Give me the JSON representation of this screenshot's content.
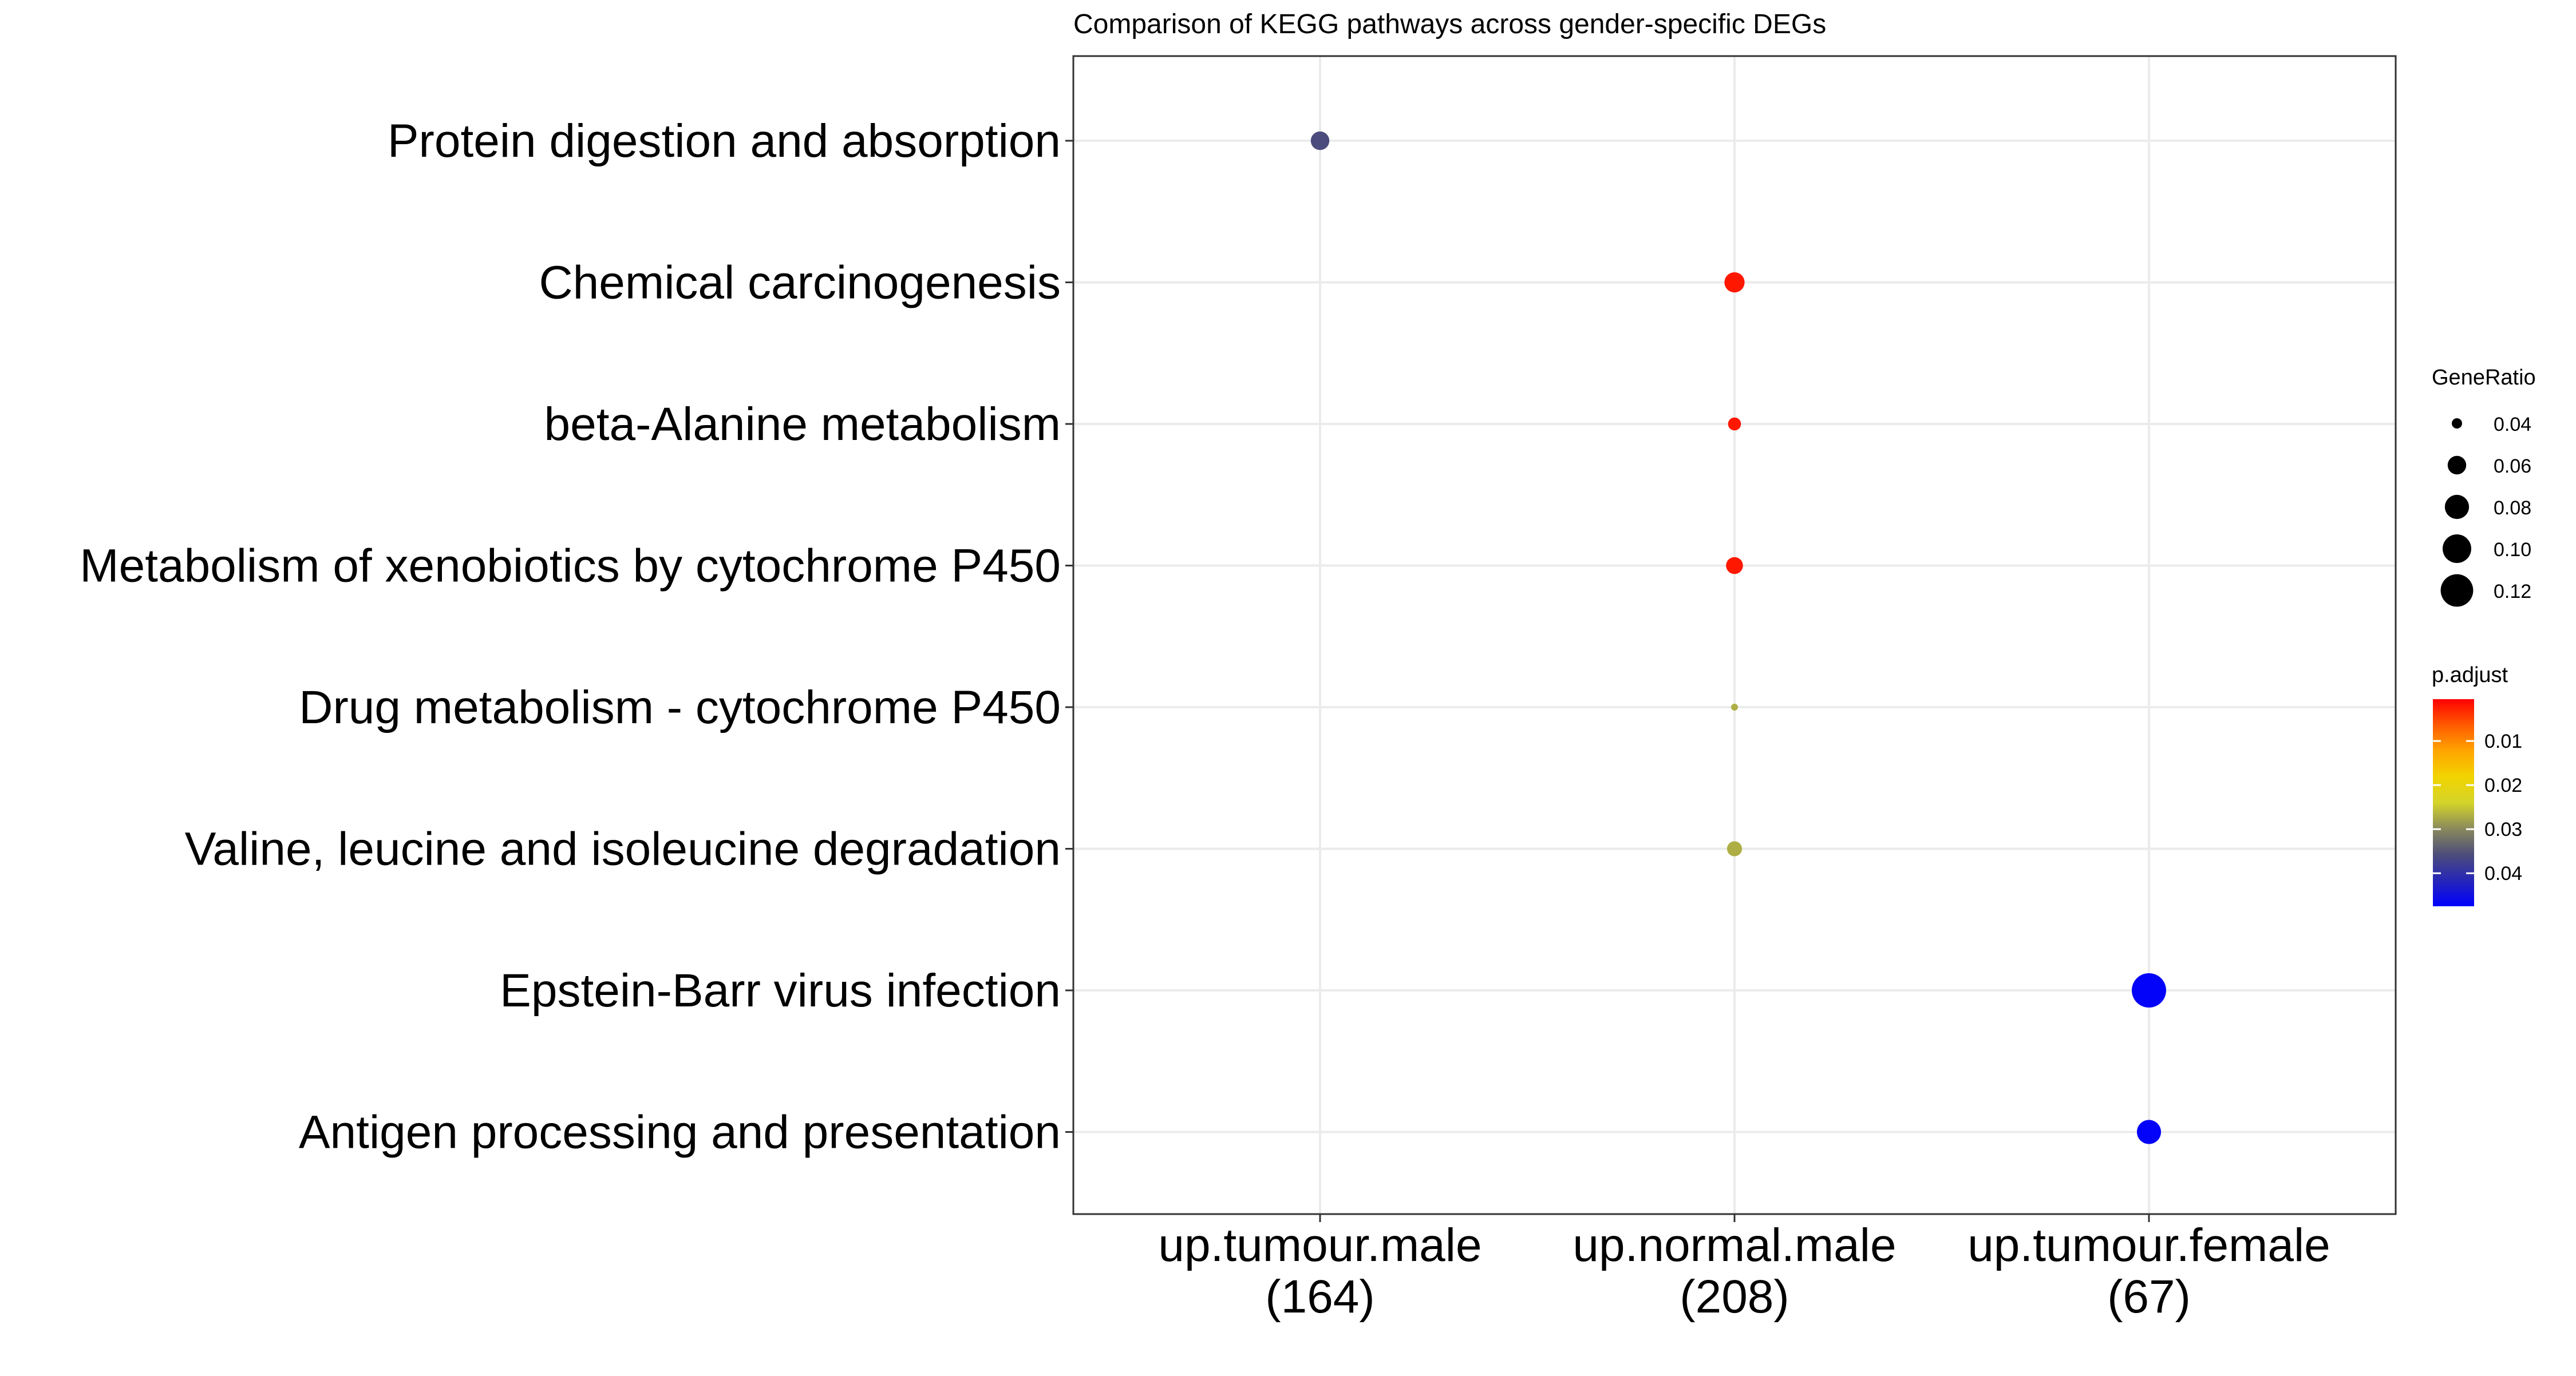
{
  "chart_data": {
    "type": "scatter",
    "title": "Comparison of KEGG pathways across gender-specific DEGs",
    "x_categories": [
      {
        "name": "up.tumour.male",
        "count": "(164)"
      },
      {
        "name": "up.normal.male",
        "count": "(208)"
      },
      {
        "name": "up.tumour.female",
        "count": "(67)"
      }
    ],
    "y_categories": [
      "Protein digestion and absorption",
      "Chemical carcinogenesis",
      "beta-Alanine metabolism",
      "Metabolism of xenobiotics by cytochrome P450",
      "Drug metabolism - cytochrome P450",
      "Valine, leucine and isoleucine degradation",
      "Epstein-Barr virus infection",
      "Antigen processing and presentation"
    ],
    "points": [
      {
        "x": "up.tumour.male",
        "y": "Protein digestion and absorption",
        "gene_ratio": 0.06,
        "p_adjust": 0.036
      },
      {
        "x": "up.normal.male",
        "y": "Chemical carcinogenesis",
        "gene_ratio": 0.065,
        "p_adjust": 0.002
      },
      {
        "x": "up.normal.male",
        "y": "beta-Alanine metabolism",
        "gene_ratio": 0.045,
        "p_adjust": 0.002
      },
      {
        "x": "up.normal.male",
        "y": "Metabolism of xenobiotics by cytochrome P450",
        "gene_ratio": 0.055,
        "p_adjust": 0.002
      },
      {
        "x": "up.normal.male",
        "y": "Drug metabolism - cytochrome P450",
        "gene_ratio": 0.035,
        "p_adjust": 0.027
      },
      {
        "x": "up.normal.male",
        "y": "Valine, leucine and isoleucine degradation",
        "gene_ratio": 0.05,
        "p_adjust": 0.027
      },
      {
        "x": "up.tumour.female",
        "y": "Epstein-Barr virus infection",
        "gene_ratio": 0.13,
        "p_adjust": 0.047
      },
      {
        "x": "up.tumour.female",
        "y": "Antigen processing and presentation",
        "gene_ratio": 0.08,
        "p_adjust": 0.047
      }
    ],
    "size_legend": {
      "title": "GeneRatio",
      "breaks": [
        0.04,
        0.06,
        0.08,
        0.1,
        0.12
      ],
      "labels": [
        "0.04",
        "0.06",
        "0.08",
        "0.10",
        "0.12"
      ],
      "range": [
        0.035,
        0.13
      ]
    },
    "color_legend": {
      "title": "p.adjust",
      "breaks": [
        0.01,
        0.02,
        0.03,
        0.04
      ],
      "labels": [
        "0.01",
        "0.02",
        "0.03",
        "0.04"
      ],
      "range": [
        0.0005,
        0.0475
      ],
      "low_color": "#ff0000",
      "mid_color": "#e5e500",
      "high_color": "#0000ff",
      "gradient_stops": [
        "#ff0000",
        "#ff5a00",
        "#ffa500",
        "#f2d400",
        "#d4d42a",
        "#8a8a5c",
        "#4d4d7a",
        "#2626b8",
        "#0000ff"
      ]
    },
    "grid": true,
    "legend_position": "right",
    "panel_border_color": "#333333",
    "grid_color": "#ebebeb"
  }
}
